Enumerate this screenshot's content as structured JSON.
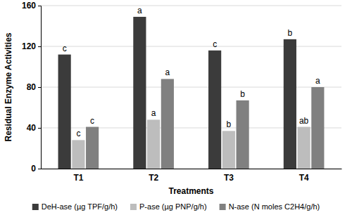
{
  "chart_data": {
    "type": "bar",
    "x_label": "Treatments",
    "y_label": "Residual Enzyme Activities",
    "categories": [
      "T1",
      "T2",
      "T3",
      "T4"
    ],
    "series": [
      {
        "name": "DeH-ase (µg TPF/g/h)",
        "color": "#3b3b3b",
        "values": [
          112,
          149,
          116,
          127
        ],
        "annotations": [
          "c",
          "a",
          "c",
          "b"
        ]
      },
      {
        "name": "P-ase (µg PNP/g/h)",
        "color": "#bdbdbd",
        "values": [
          28,
          48,
          37,
          41
        ],
        "annotations": [
          "c",
          "a",
          "b",
          "ab"
        ]
      },
      {
        "name": "N-ase (N moles C2H4/g/h)",
        "color": "#808080",
        "values": [
          41,
          88,
          67,
          80
        ],
        "annotations": [
          "c",
          "a",
          "b",
          "a"
        ]
      }
    ],
    "ylim": [
      0,
      160
    ],
    "yticks": [
      0,
      40,
      80,
      120,
      160
    ],
    "grid": true,
    "legend": "bottom"
  }
}
